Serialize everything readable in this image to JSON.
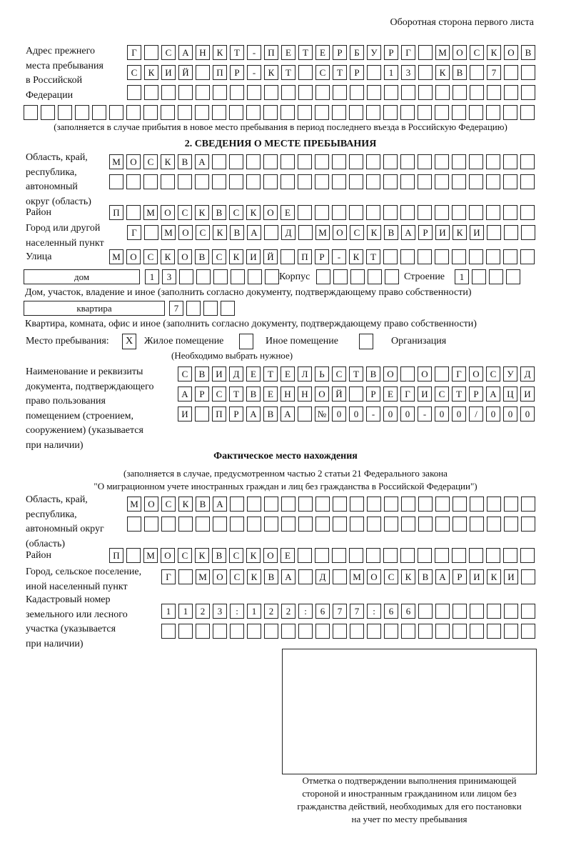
{
  "header": "Оборотная сторона первого листа",
  "prev_address": {
    "label": [
      "Адрес прежнего",
      "места пребывания",
      "в Российской",
      "Федерации"
    ],
    "rows": [
      "Г САНКТ-ПЕТЕРБУРГ МОСКОВ",
      "СКИЙ ПР-КТ СТР 13 КВ 7",
      "",
      ""
    ],
    "note": "(заполняется в случае прибытия в новое место пребывания в период последнего въезда в Российскую Федерацию)"
  },
  "section2": {
    "title": "2. СВЕДЕНИЯ О МЕСТЕ ПРЕБЫВАНИЯ",
    "region_label": [
      "Область, край,",
      "республика,",
      "автономный",
      "округ (область)"
    ],
    "region_rows": [
      "МОСКВА",
      ""
    ],
    "district_label": "Район",
    "district": "П МОСКВСКОЕ",
    "city_label": [
      "Город или другой",
      "населенный пункт"
    ],
    "city": "Г МОСКВА Д МОСКВАРИКИ",
    "street_label": "Улица",
    "street": "МОСКОВСКИЙ ПР-КТ",
    "house_type": "дом",
    "house": "13",
    "korpus_label": "Корпус",
    "korpus": "",
    "building_label": "Строение",
    "building": "1",
    "house_note": "Дом, участок, владение и иное (заполнить согласно документу, подтверждающему право собственности)",
    "flat_type": "квартира",
    "flat": "7",
    "flat_note": "Квартира, комната, офис и иное (заполнить согласно документу, подтверждающему право собственности)",
    "stay_label": "Место пребывания:",
    "stay_options": [
      {
        "label": "Жилое помещение",
        "checked": true,
        "mark": "X"
      },
      {
        "label": "Иное помещение",
        "checked": false,
        "mark": ""
      },
      {
        "label": "Организация",
        "checked": false,
        "mark": ""
      }
    ],
    "stay_note": "(Необходимо выбрать нужное)",
    "doc_label": [
      "Наименование и реквизиты",
      "документа, подтверждающего",
      "право пользования",
      "помещением (строением,",
      "сооружением) (указывается",
      "при наличии)"
    ],
    "doc_rows": [
      "СВИДЕТЕЛЬСТВО О ГОСУД",
      "АРСТВЕННОЙ РЕГИСТРАЦИ",
      "И ПРАВА №00-00-00/000"
    ]
  },
  "actual": {
    "title": "Фактическое место нахождения",
    "note": [
      "(заполняется в случае, предусмотренном частью 2 статьи 21 Федерального закона",
      "\"О миграционном учете иностранных граждан и лиц без гражданства в Российской Федерации\")"
    ],
    "region_label": [
      "Область, край,",
      "республика,",
      "автономный округ",
      "(область)"
    ],
    "region_rows": [
      "МОСКВА",
      ""
    ],
    "district_label": "Район",
    "district": "П МОСКВСКОЕ",
    "city_label": [
      "Город, сельское поселение,",
      "иной населенный пункт"
    ],
    "city": "Г МОСКВА Д МОСКВАРИКИ",
    "cadastre_label": [
      "Кадастровый номер",
      "земельного или лесного",
      "участка (указывается",
      "при наличии)"
    ],
    "cadastre_rows": [
      "1123:122:677:66",
      ""
    ]
  },
  "stamp_caption": [
    "Отметка о подтверждении выполнения принимающей",
    "стороной и иностранным гражданином или лицом без",
    "гражданства действий, необходимых для его постановки",
    "на учет по месту пребывания"
  ]
}
